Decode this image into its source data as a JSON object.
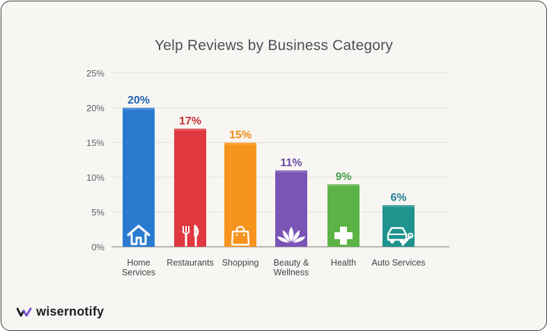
{
  "chart_data": {
    "type": "bar",
    "title": "Yelp Reviews by Business Category",
    "xlabel": "",
    "ylabel": "",
    "ylim": [
      0,
      25
    ],
    "yticks": [
      0,
      5,
      10,
      15,
      20,
      25
    ],
    "ytick_labels": [
      "0%",
      "5%",
      "10%",
      "15%",
      "20%",
      "25%"
    ],
    "grid": true,
    "categories": [
      "Home Services",
      "Restaurants",
      "Shopping",
      "Beauty & Wellness",
      "Health",
      "Auto Services"
    ],
    "category_lines": [
      [
        "Home",
        "Services"
      ],
      [
        "Restaurants"
      ],
      [
        "Shopping"
      ],
      [
        "Beauty &",
        "Wellness"
      ],
      [
        "Health"
      ],
      [
        "Auto Services"
      ]
    ],
    "values": [
      20,
      17,
      15,
      11,
      9,
      6
    ],
    "value_labels": [
      "20%",
      "17%",
      "15%",
      "11%",
      "9%",
      "6%"
    ],
    "colors": [
      "#2a7bd0",
      "#e0383f",
      "#f7941d",
      "#7b55b5",
      "#5bb346",
      "#1f938e"
    ],
    "label_colors": [
      "#2066b3",
      "#c9303a",
      "#ef8a14",
      "#6b49a6",
      "#43a047",
      "#1f7f95"
    ],
    "icons": [
      "home-icon",
      "fork-knife-icon",
      "shopping-bag-icon",
      "lotus-icon",
      "medical-cross-icon",
      "car-wrench-icon"
    ]
  },
  "brand": {
    "name": "wisernotify",
    "icon": "wisernotify-logo-icon"
  }
}
